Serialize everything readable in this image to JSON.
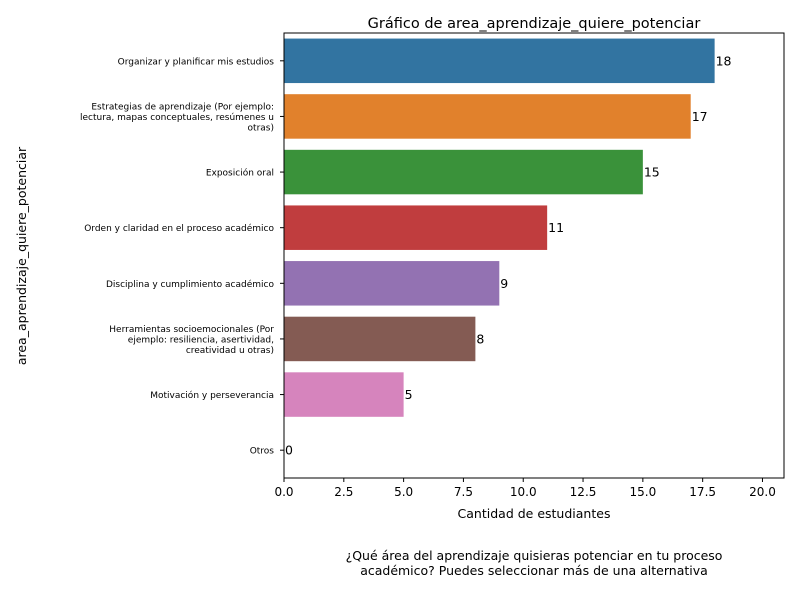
{
  "chart_data": {
    "type": "bar",
    "orientation": "horizontal",
    "title": "Gráfico de area_aprendizaje_quiere_potenciar",
    "xlabel": "Cantidad de estudiantes",
    "ylabel": "area_aprendizaje_quiere_potenciar",
    "categories": [
      [
        "Organizar y planificar mis estudios"
      ],
      [
        "Estrategias de aprendizaje (Por ejemplo:",
        "lectura, mapas conceptuales, resúmenes u",
        "otras)"
      ],
      [
        "Exposición oral"
      ],
      [
        "Orden y claridad en el proceso académico"
      ],
      [
        "Disciplina y cumplimiento académico"
      ],
      [
        "Herramientas socioemocionales (Por",
        "ejemplo: resiliencia, asertividad,",
        "creatividad u otras)"
      ],
      [
        "Motivación y perseverancia"
      ],
      [
        "Otros"
      ]
    ],
    "values": [
      18,
      17,
      15,
      11,
      9,
      8,
      5,
      0
    ],
    "data_labels": [
      "18",
      "17",
      "15",
      "11",
      "9",
      "8",
      "5",
      "0"
    ],
    "colors": [
      "#3274a1",
      "#e1812c",
      "#3a923a",
      "#c03d3e",
      "#9372b2",
      "#845b53",
      "#d684bd",
      "#7f7f7f"
    ],
    "xlim": [
      0,
      20.9
    ],
    "xticks": [
      0,
      2.5,
      5,
      7.5,
      10,
      12.5,
      15,
      17.5,
      20
    ],
    "xtick_labels": [
      "0.0",
      "2.5",
      "5.0",
      "7.5",
      "10.0",
      "12.5",
      "15.0",
      "17.5",
      "20.0"
    ],
    "grid": false,
    "legend": false
  },
  "caption": [
    "¿Qué área del aprendizaje quisieras potenciar en tu proceso",
    "académico? Puedes seleccionar más de una alternativa"
  ]
}
